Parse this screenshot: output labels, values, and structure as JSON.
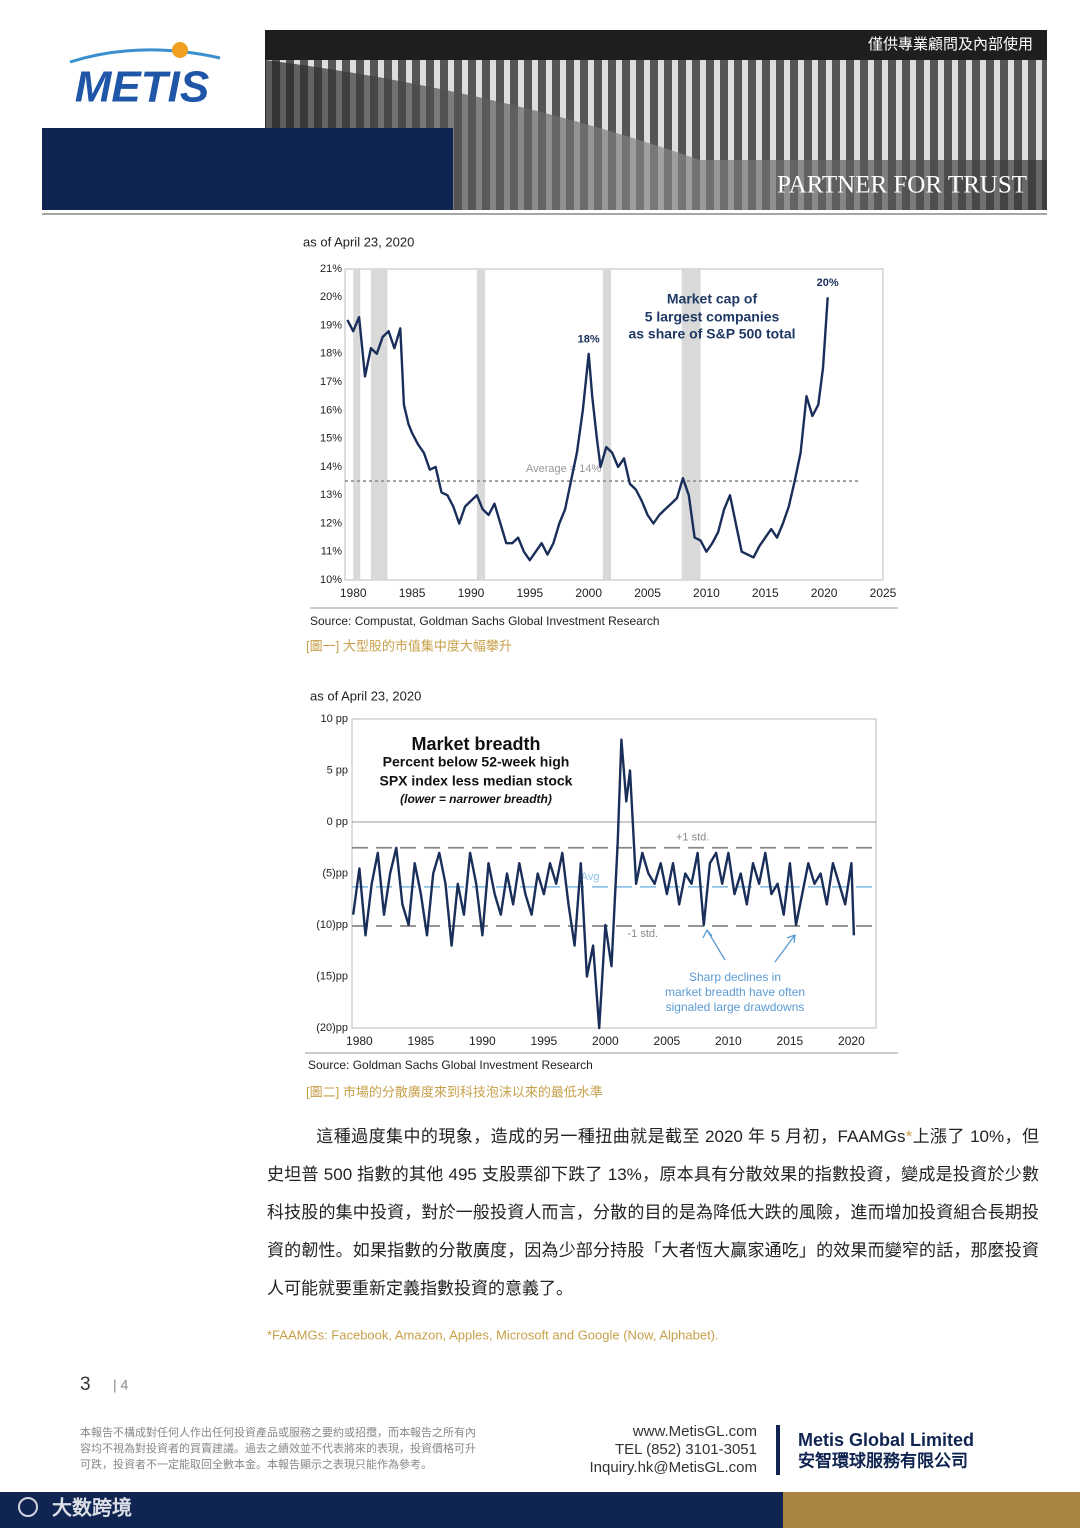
{
  "header": {
    "notice": "僅供專業顧問及內部使用",
    "logo": "METIS",
    "slogan": "PARTNER FOR TRUST"
  },
  "chart_data": [
    {
      "type": "line",
      "subtitle": "as of April 23, 2020",
      "title": [
        "Market cap of",
        "5 largest companies",
        "as share of S&P 500 total"
      ],
      "x": [
        1979.5,
        1980,
        1980.5,
        1981,
        1981.5,
        1982,
        1982.5,
        1983,
        1983.5,
        1984,
        1984.3,
        1984.7,
        1985,
        1985.5,
        1986,
        1986.5,
        1987,
        1987.5,
        1988,
        1988.5,
        1989,
        1989.5,
        1990,
        1990.5,
        1991,
        1991.5,
        1992,
        1992.5,
        1993,
        1993.5,
        1994,
        1994.5,
        1995,
        1995.5,
        1996,
        1996.5,
        1997,
        1997.5,
        1998,
        1998.5,
        1999,
        1999.5,
        2000,
        2000.3,
        2000.7,
        2001,
        2001.5,
        2002,
        2002.5,
        2003,
        2003.5,
        2004,
        2004.5,
        2005,
        2005.5,
        2006,
        2006.5,
        2007,
        2007.5,
        2008,
        2008.5,
        2009,
        2009.5,
        2010,
        2010.5,
        2011,
        2011.5,
        2012,
        2012.5,
        2013,
        2013.5,
        2014,
        2014.5,
        2015,
        2015.5,
        2016,
        2016.5,
        2017,
        2017.5,
        2018,
        2018.5,
        2019,
        2019.5,
        2019.9,
        2020.3
      ],
      "values": [
        19.2,
        18.8,
        19.3,
        17.2,
        18.2,
        18.0,
        18.6,
        18.8,
        18.2,
        18.9,
        16.2,
        15.5,
        15.2,
        14.8,
        14.5,
        13.9,
        14.0,
        13.1,
        13.0,
        12.6,
        12.0,
        12.6,
        12.8,
        13.0,
        12.5,
        12.3,
        12.7,
        12.0,
        11.3,
        11.3,
        11.5,
        11.0,
        10.7,
        11.0,
        11.3,
        10.9,
        11.3,
        12.0,
        12.5,
        13.5,
        14.5,
        16.0,
        18.0,
        16.5,
        15.0,
        14.0,
        14.7,
        14.5,
        14.0,
        14.3,
        13.4,
        13.2,
        12.8,
        12.3,
        12.0,
        12.3,
        12.5,
        12.7,
        12.9,
        13.6,
        13.0,
        11.5,
        11.4,
        11.0,
        11.3,
        11.7,
        12.5,
        13.0,
        12.0,
        11.0,
        10.9,
        10.8,
        11.2,
        11.5,
        11.8,
        11.5,
        12.0,
        12.6,
        13.5,
        14.5,
        16.5,
        15.8,
        16.2,
        17.5,
        20.0
      ],
      "color": "#1a2e5a",
      "xlim": [
        1979.3,
        2025
      ],
      "xticks": [
        1980,
        1985,
        1990,
        1995,
        2000,
        2005,
        2010,
        2015,
        2020,
        2025
      ],
      "ylim": [
        10,
        21
      ],
      "yticks": [
        {
          "value": 10,
          "label": "10%"
        },
        {
          "value": 11,
          "label": "11%"
        },
        {
          "value": 12,
          "label": "12%"
        },
        {
          "value": 13,
          "label": "13%"
        },
        {
          "value": 14,
          "label": "14%"
        },
        {
          "value": 15,
          "label": "15%"
        },
        {
          "value": 16,
          "label": "16%"
        },
        {
          "value": 17,
          "label": "17%"
        },
        {
          "value": 18,
          "label": "18%"
        },
        {
          "value": 19,
          "label": "19%"
        },
        {
          "value": 20,
          "label": "20%"
        },
        {
          "value": 21,
          "label": "21%"
        }
      ],
      "shaded": [
        [
          1980,
          1980.6
        ],
        [
          1981.5,
          1982.9
        ],
        [
          1990.5,
          1991.2
        ],
        [
          2001.2,
          2001.9
        ],
        [
          2007.9,
          2009.5
        ]
      ],
      "ref_lines": [
        {
          "value": 13.5,
          "label": "Average = 14%",
          "color": "#999999"
        }
      ],
      "annotations": [
        {
          "x": 2000,
          "y": 18,
          "label": "18%"
        },
        {
          "x": 2020.3,
          "y": 20,
          "label": "20%"
        }
      ],
      "source": "Source: Compustat, Goldman Sachs Global Investment Research",
      "caption": "[圖一] 大型股的市值集中度大幅攀升"
    },
    {
      "type": "line",
      "subtitle": "as of April 23, 2020",
      "title": [
        "Market breadth",
        "Percent below 52-week high",
        "SPX index less median stock",
        "(lower = narrower breadth)"
      ],
      "x": [
        1979.5,
        1980,
        1980.5,
        1981,
        1981.5,
        1982,
        1982.5,
        1983,
        1983.5,
        1984,
        1984.5,
        1985,
        1985.5,
        1986,
        1986.5,
        1987,
        1987.5,
        1988,
        1988.5,
        1989,
        1989.5,
        1990,
        1990.5,
        1991,
        1991.5,
        1992,
        1992.5,
        1993,
        1993.5,
        1994,
        1994.5,
        1995,
        1995.5,
        1996,
        1996.5,
        1997,
        1997.5,
        1998,
        1998.5,
        1999,
        1999.5,
        2000,
        2000.5,
        2001,
        2001.3,
        2001.7,
        2002,
        2002.5,
        2003,
        2003.5,
        2004,
        2004.5,
        2005,
        2005.5,
        2006,
        2006.5,
        2007,
        2007.5,
        2008,
        2008.5,
        2009,
        2009.5,
        2010,
        2010.5,
        2011,
        2011.5,
        2012,
        2012.5,
        2013,
        2013.5,
        2014,
        2014.5,
        2015,
        2015.5,
        2016,
        2016.5,
        2017,
        2017.5,
        2018,
        2018.5,
        2019,
        2019.5,
        2020,
        2020.2
      ],
      "values": [
        -9,
        -4.5,
        -11,
        -6,
        -3,
        -9,
        -5,
        -2.5,
        -8,
        -10,
        -4,
        -7,
        -11,
        -5,
        -3,
        -6,
        -12,
        -6,
        -9,
        -3,
        -6,
        -11,
        -4,
        -7,
        -9,
        -5,
        -8,
        -4,
        -7,
        -9,
        -5,
        -7,
        -4,
        -6,
        -3,
        -8,
        -12,
        -4,
        -15,
        -12,
        -20,
        -10,
        -14,
        -2,
        8,
        2,
        5,
        -6,
        -3,
        -5,
        -6,
        -4,
        -7,
        -4,
        -8,
        -5,
        -6,
        -3,
        -10,
        -4,
        -3,
        -6,
        -3,
        -7,
        -5,
        -8,
        -4,
        -6,
        -3,
        -7,
        -6,
        -9,
        -4,
        -10,
        -7,
        -4,
        -6,
        -5,
        -8,
        -4,
        -6,
        -8,
        -4,
        -11
      ],
      "color": "#1a2e5a",
      "xlim": [
        1979.4,
        2022
      ],
      "xticks": [
        1980,
        1985,
        1990,
        1995,
        2000,
        2005,
        2010,
        2015,
        2020
      ],
      "ylim": [
        -20,
        10
      ],
      "yticks": [
        {
          "value": 10,
          "label": "10 pp"
        },
        {
          "value": 5,
          "label": "5 pp"
        },
        {
          "value": 0,
          "label": "0 pp"
        },
        {
          "value": -5,
          "label": "(5)pp"
        },
        {
          "value": -10,
          "label": "(10)pp"
        },
        {
          "value": -15,
          "label": "(15)pp"
        },
        {
          "value": -20,
          "label": "(20)pp"
        }
      ],
      "ref_lines": [
        {
          "value": 0,
          "color": "#999999"
        },
        {
          "value": -2.5,
          "label": "+1 std.",
          "color": "#888888"
        },
        {
          "value": -6.3,
          "label": "Avg",
          "color": "#8fc3e6"
        },
        {
          "value": -10.1,
          "label": "-1 std.",
          "color": "#888888"
        }
      ],
      "note": [
        "Sharp declines in",
        "market breadth have often",
        "signaled large drawdowns"
      ],
      "source": "Source: Goldman Sachs Global Investment Research",
      "caption": "[圖二] 市場的分散廣度來到科技泡沫以來的最低水準"
    }
  ],
  "body": {
    "text_before": "這種過度集中的現象，造成的另一種扭曲就是截至 2020 年 5 月初，FAAMGs",
    "mark": "*",
    "text_after": "上漲了 10%，但史坦普 500 指數的其他 495 支股票卻下跌了 13%，原本具有分散效果的指數投資，變成是投資於少數科技股的集中投資，對於一般投資人而言，分散的目的是為降低大跌的風險，進而增加投資組合長期投資的韌性。如果指數的分散廣度，因為少部分持股「大者恆大贏家通吃」的效果而變窄的話，那麼投資人可能就要重新定義指數投資的意義了。",
    "footnote": "*FAAMGs: Facebook, Amazon, Apples, Microsoft and Google (Now, Alphabet)."
  },
  "footer": {
    "page": "3",
    "total": "| 4",
    "disclaimer": [
      "本報告不構成對任何人作出任何投資產品或服務之要約或招攬，而本報告之所有內",
      "容均不視為對投資者的買賣建議。過去之績效並不代表將來的表現，投資價格可升",
      "可跌，投資者不一定能取回全數本金。本報告顯示之表現只能作為參考。"
    ],
    "contact": [
      "www.MetisGL.com",
      "TEL (852) 3101-3051",
      "Inquiry.hk@MetisGL.com"
    ],
    "company_en": "Metis Global Limited",
    "company_zh": "安智環球服務有限公司",
    "watermark": "大数跨境"
  }
}
